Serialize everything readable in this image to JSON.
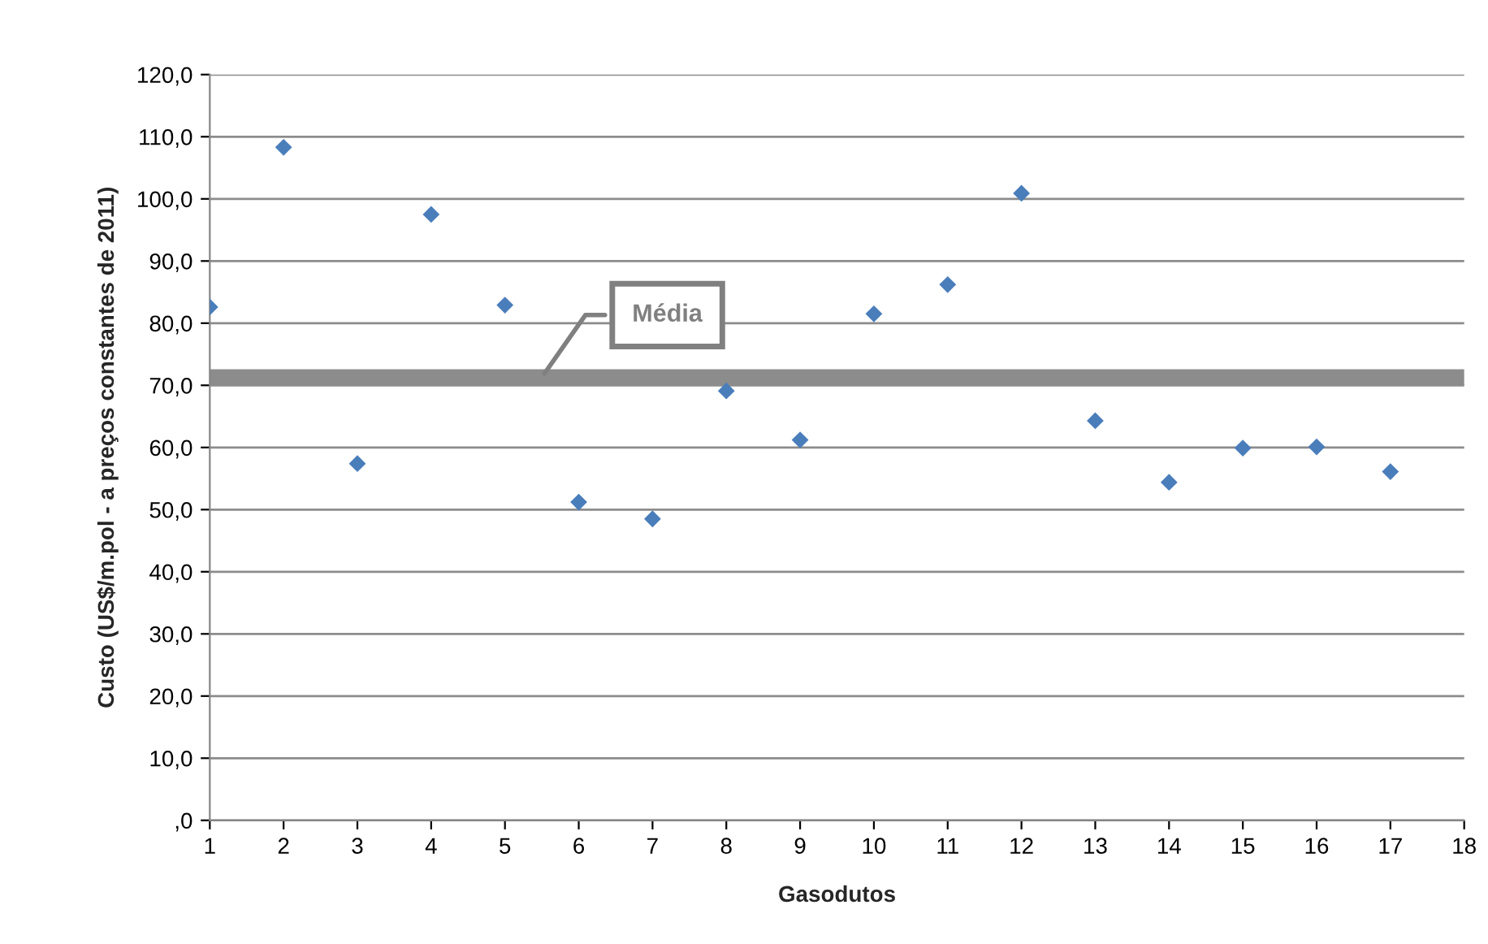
{
  "chart_data": {
    "type": "scatter",
    "xlabel": "Gasodutos",
    "ylabel": "Custo (US$/m.pol - a preços constantes de 2011)",
    "x": [
      1,
      2,
      3,
      4,
      5,
      6,
      7,
      8,
      9,
      10,
      11,
      12,
      13,
      14,
      15,
      16,
      17
    ],
    "series": [
      {
        "color": "#4a7ebb",
        "values": [
          82.6,
          108.3,
          57.4,
          97.5,
          82.9,
          51.2,
          48.5,
          69.1,
          61.2,
          81.5,
          86.2,
          100.9,
          64.3,
          54.4,
          59.9,
          60.1,
          56.1
        ]
      }
    ],
    "marker": "diamond",
    "xlim": [
      1,
      18
    ],
    "xticks": [
      1,
      2,
      3,
      4,
      5,
      6,
      7,
      8,
      9,
      10,
      11,
      12,
      13,
      14,
      15,
      16,
      17,
      18
    ],
    "ylim": [
      0,
      120
    ],
    "yticks": [
      {
        "value": 0,
        "label": ",0"
      },
      {
        "value": 10,
        "label": "10,0"
      },
      {
        "value": 20,
        "label": "20,0"
      },
      {
        "value": 30,
        "label": "30,0"
      },
      {
        "value": 40,
        "label": "40,0"
      },
      {
        "value": 50,
        "label": "50,0"
      },
      {
        "value": 60,
        "label": "60,0"
      },
      {
        "value": 70,
        "label": "70,0"
      },
      {
        "value": 80,
        "label": "80,0"
      },
      {
        "value": 90,
        "label": "90,0"
      },
      {
        "value": 100,
        "label": "100,0"
      },
      {
        "value": 110,
        "label": "110,0"
      },
      {
        "value": 120,
        "label": "120,0"
      }
    ],
    "grid": "y",
    "ref_lines": [
      {
        "axis": "y",
        "value": 71.3,
        "label": "Média",
        "color": "#8c8c8c"
      }
    ]
  }
}
